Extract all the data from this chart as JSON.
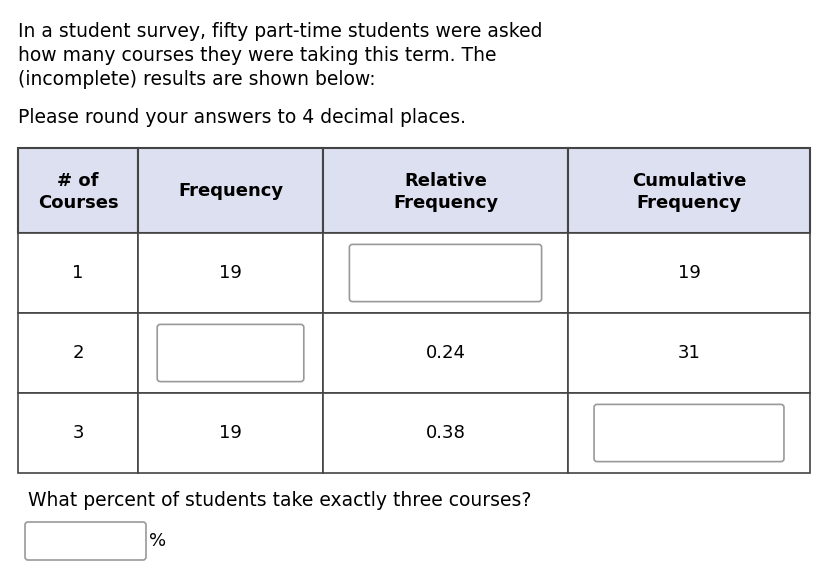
{
  "title_line1": "In a student survey, fifty part-time students were asked",
  "title_line2": "how many courses they were taking this term. The",
  "title_line3": "(incomplete) results are shown below:",
  "subtitle": "Please round your answers to 4 decimal places.",
  "col_headers": [
    "# of\nCourses",
    "Frequency",
    "Relative\nFrequency",
    "Cumulative\nFrequency"
  ],
  "rows": [
    {
      "courses": "1",
      "frequency": "19",
      "rel_freq": "",
      "cum_freq": "19",
      "freq_blank": false,
      "rel_blank": true,
      "cum_blank": false
    },
    {
      "courses": "2",
      "frequency": "",
      "rel_freq": "0.24",
      "cum_freq": "31",
      "freq_blank": true,
      "rel_blank": false,
      "cum_blank": false
    },
    {
      "courses": "3",
      "frequency": "19",
      "rel_freq": "0.38",
      "cum_freq": "",
      "freq_blank": false,
      "rel_blank": false,
      "cum_blank": true
    }
  ],
  "question": "What percent of students take exactly three courses?",
  "answer_blank_label": "%",
  "header_bg": "#dde0f0",
  "blank_fill": "#ffffff",
  "blank_edge": "#999999",
  "cell_bg": "#ffffff",
  "border_color": "#444444",
  "text_color": "#000000",
  "font_size_body": 13,
  "font_size_header": 13,
  "font_size_title": 13.5
}
